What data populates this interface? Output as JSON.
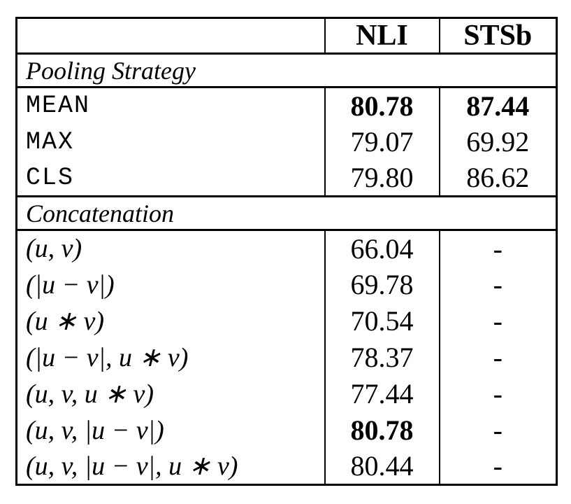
{
  "table": {
    "header": {
      "col0": "",
      "col1": "NLI",
      "col2": "STSb"
    },
    "sections": [
      {
        "title": "Pooling Strategy",
        "rows": [
          {
            "label": "MEAN",
            "nli": "80.78",
            "stsb": "87.44"
          },
          {
            "label": "MAX",
            "nli": "79.07",
            "stsb": "69.92"
          },
          {
            "label": "CLS",
            "nli": "79.80",
            "stsb": "86.62"
          }
        ]
      },
      {
        "title": "Concatenation",
        "rows": [
          {
            "label": "(u, v)",
            "nli": "66.04",
            "stsb": "-"
          },
          {
            "label": "(|u − v|)",
            "nli": "69.78",
            "stsb": "-"
          },
          {
            "label": "(u ∗ v)",
            "nli": "70.54",
            "stsb": "-"
          },
          {
            "label": "(|u − v|, u ∗ v)",
            "nli": "78.37",
            "stsb": "-"
          },
          {
            "label": "(u, v, u ∗ v)",
            "nli": "77.44",
            "stsb": "-"
          },
          {
            "label": "(u, v, |u − v|)",
            "nli": "80.78",
            "stsb": "-"
          },
          {
            "label": "(u, v, |u − v|, u ∗ v)",
            "nli": "80.44",
            "stsb": "-"
          }
        ]
      }
    ]
  }
}
